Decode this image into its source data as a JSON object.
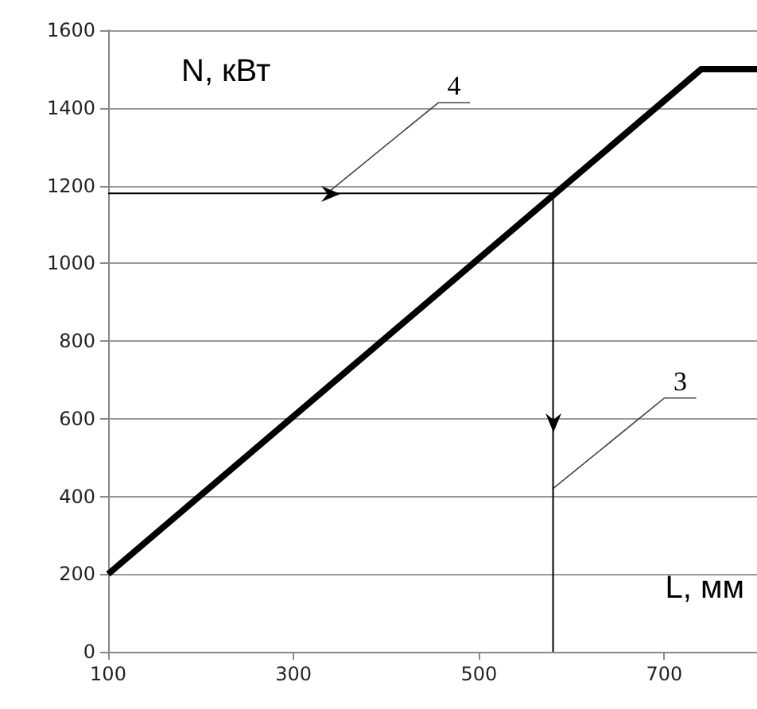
{
  "chart_data": {
    "type": "line",
    "xlabel": "L, мм",
    "ylabel": "N, кВт",
    "xlim": [
      100,
      800
    ],
    "xticks": [
      100,
      300,
      500,
      700
    ],
    "ylim": [
      0,
      1600
    ],
    "yticks": [
      0,
      200,
      400,
      600,
      800,
      1000,
      1200,
      1400,
      1600
    ],
    "grid": "y",
    "marker": "none",
    "line_style": "solid",
    "series": [
      {
        "color": "#000000",
        "x": [
          100,
          740,
          800
        ],
        "values": [
          200,
          1500,
          1500
        ]
      },
      {
        "color": "#000000",
        "x": [
          100,
          580
        ],
        "values": [
          1180,
          1180
        ]
      },
      {
        "color": "#000000",
        "x": [
          580,
          580
        ],
        "values": [
          1180,
          0
        ]
      }
    ],
    "annotations": [
      {
        "text": "4",
        "x": 336,
        "y": 1180
      },
      {
        "text": "3",
        "x": 580,
        "y": 420
      }
    ]
  }
}
